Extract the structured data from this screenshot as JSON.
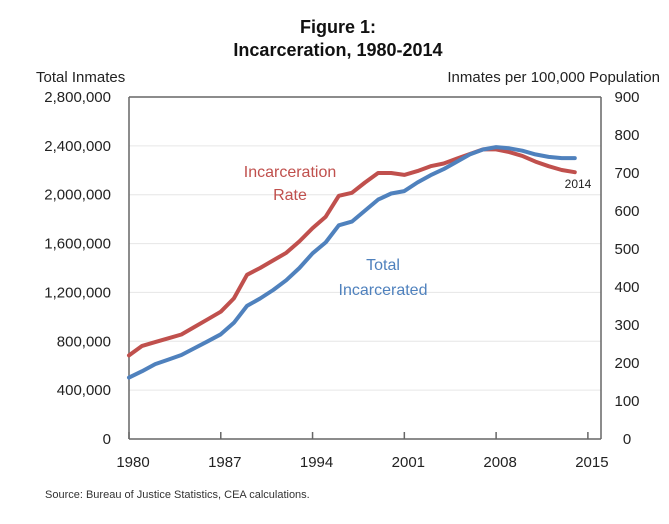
{
  "chart_data": {
    "type": "line",
    "title": "Figure 1:",
    "subtitle": "Incarceration, 1980-2014",
    "ylabel_left": "Total Inmates",
    "ylabel_right": "Inmates per 100,000 Population",
    "source": "Source: Bureau of Justice Statistics, CEA calculations.",
    "xlim": [
      1980,
      2016
    ],
    "ylim_left": [
      0,
      2800000
    ],
    "ylim_right": [
      0,
      900
    ],
    "x_ticks": [
      "1980",
      "1987",
      "1994",
      "2001",
      "2008",
      "2015"
    ],
    "y_ticks_left": [
      "0",
      "400,000",
      "800,000",
      "1,200,000",
      "1,600,000",
      "2,000,000",
      "2,400,000",
      "2,800,000"
    ],
    "y_ticks_right": [
      "0",
      "100",
      "200",
      "300",
      "400",
      "500",
      "600",
      "700",
      "800",
      "900"
    ],
    "grid": true,
    "x": [
      1980,
      1981,
      1982,
      1983,
      1984,
      1985,
      1986,
      1987,
      1988,
      1989,
      1990,
      1991,
      1992,
      1993,
      1994,
      1995,
      1996,
      1997,
      1998,
      1999,
      2000,
      2001,
      2002,
      2003,
      2004,
      2005,
      2006,
      2007,
      2008,
      2009,
      2010,
      2011,
      2012,
      2013,
      2014
    ],
    "series": [
      {
        "name": "Incarceration Rate",
        "axis": "right",
        "color": "#c0504d",
        "values": [
          220,
          245,
          255,
          265,
          275,
          295,
          315,
          335,
          370,
          432,
          450,
          470,
          490,
          520,
          555,
          585,
          640,
          648,
          675,
          700,
          700,
          695,
          705,
          718,
          725,
          738,
          750,
          762,
          762,
          755,
          745,
          730,
          718,
          708,
          702
        ]
      },
      {
        "name": "Total Incarcerated",
        "axis": "left",
        "color": "#4f81bd",
        "values": [
          503000,
          555000,
          613000,
          650000,
          688000,
          744000,
          800000,
          857000,
          951000,
          1090000,
          1150000,
          1220000,
          1300000,
          1400000,
          1520000,
          1610000,
          1750000,
          1780000,
          1870000,
          1960000,
          2010000,
          2030000,
          2100000,
          2160000,
          2210000,
          2270000,
          2330000,
          2370000,
          2390000,
          2380000,
          2360000,
          2330000,
          2310000,
          2300000,
          2300000
        ]
      }
    ],
    "annotations": {
      "rate_label_line1": "Incarceration",
      "rate_label_line2": "Rate",
      "total_label_line1": "Total",
      "total_label_line2": "Incarcerated",
      "end_label": "2014"
    }
  }
}
